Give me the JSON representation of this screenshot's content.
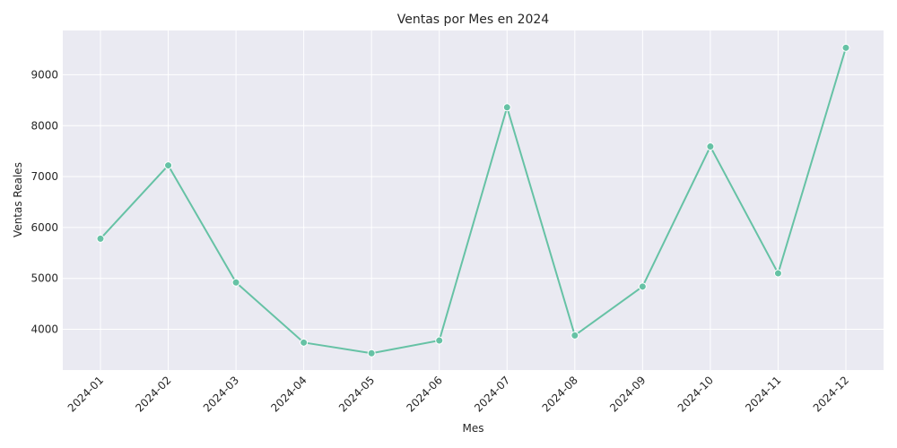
{
  "chart_data": {
    "type": "line",
    "title": "Ventas por Mes en 2024",
    "xlabel": "Mes",
    "ylabel": "Ventas Reales",
    "categories": [
      "2024-01",
      "2024-02",
      "2024-03",
      "2024-04",
      "2024-05",
      "2024-06",
      "2024-07",
      "2024-08",
      "2024-09",
      "2024-10",
      "2024-11",
      "2024-12"
    ],
    "series": [
      {
        "values": [
          5780,
          7220,
          4920,
          3740,
          3530,
          3780,
          8360,
          3880,
          4840,
          7590,
          5100,
          9530
        ]
      }
    ],
    "ylim": [
      3200,
      9870
    ],
    "yticks": [
      4000,
      5000,
      6000,
      7000,
      8000,
      9000
    ],
    "grid": true,
    "colors": {
      "line": "#66c2a5",
      "background": "#eaeaf2",
      "grid": "#ffffff"
    }
  }
}
